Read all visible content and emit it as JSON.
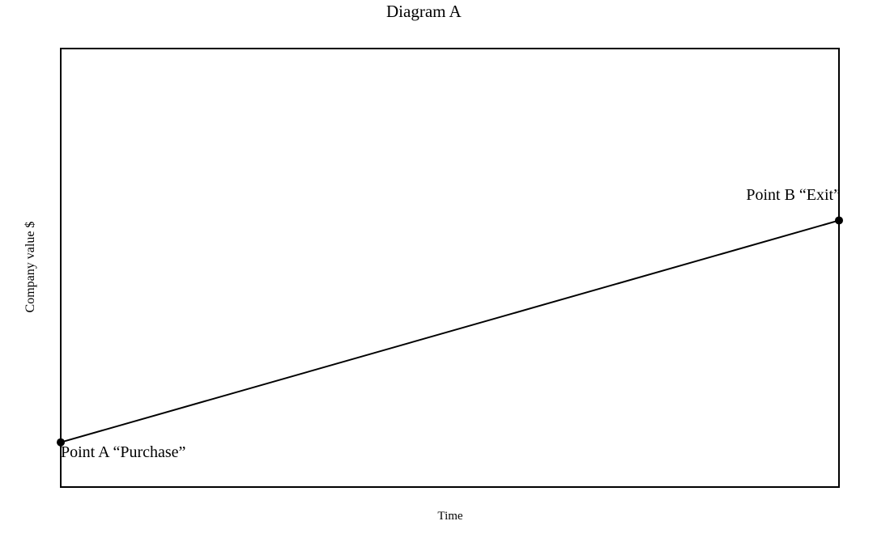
{
  "title": "Diagram A",
  "axes": {
    "y_label": "Company value $",
    "x_label": "Time"
  },
  "colors": {
    "line": "#000000",
    "marker": "#000000",
    "border": "#000000",
    "background": "#ffffff",
    "text": "#000000"
  },
  "chart_data": {
    "type": "line",
    "title": "Diagram A",
    "xlabel": "Time",
    "ylabel": "Company value $",
    "xlim": [
      0,
      1
    ],
    "ylim": [
      0,
      1
    ],
    "grid": false,
    "tick_labels": "none",
    "legend": "none",
    "description": "Straight upward-sloping line showing company value rising over time from purchase to exit",
    "points": [
      {
        "id": "A",
        "label": "Point A “Purchase”",
        "x": 0,
        "y": 0.102
      },
      {
        "id": "B",
        "label": "Point B “Exit”",
        "x": 1,
        "y": 0.608
      }
    ]
  }
}
